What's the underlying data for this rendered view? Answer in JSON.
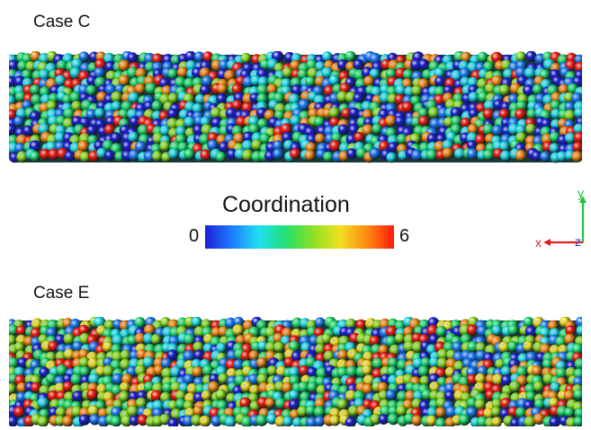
{
  "panels": [
    {
      "label": "Case C",
      "seed": 17,
      "mix": "low"
    },
    {
      "label": "Case E",
      "seed": 91,
      "mix": "high"
    }
  ],
  "colorbar": {
    "title": "Coordination",
    "min_label": "0",
    "max_label": "6",
    "colors": [
      "#1f1fd8",
      "#1e7dff",
      "#20e0f0",
      "#22e070",
      "#8ee022",
      "#f0e020",
      "#ff8a10",
      "#ff1a10"
    ]
  },
  "axes": {
    "x_label": "x",
    "y_label": "y",
    "z_label": "z",
    "x_color": "#e02020",
    "y_color": "#22c040",
    "z_color": "#2040e0"
  }
}
